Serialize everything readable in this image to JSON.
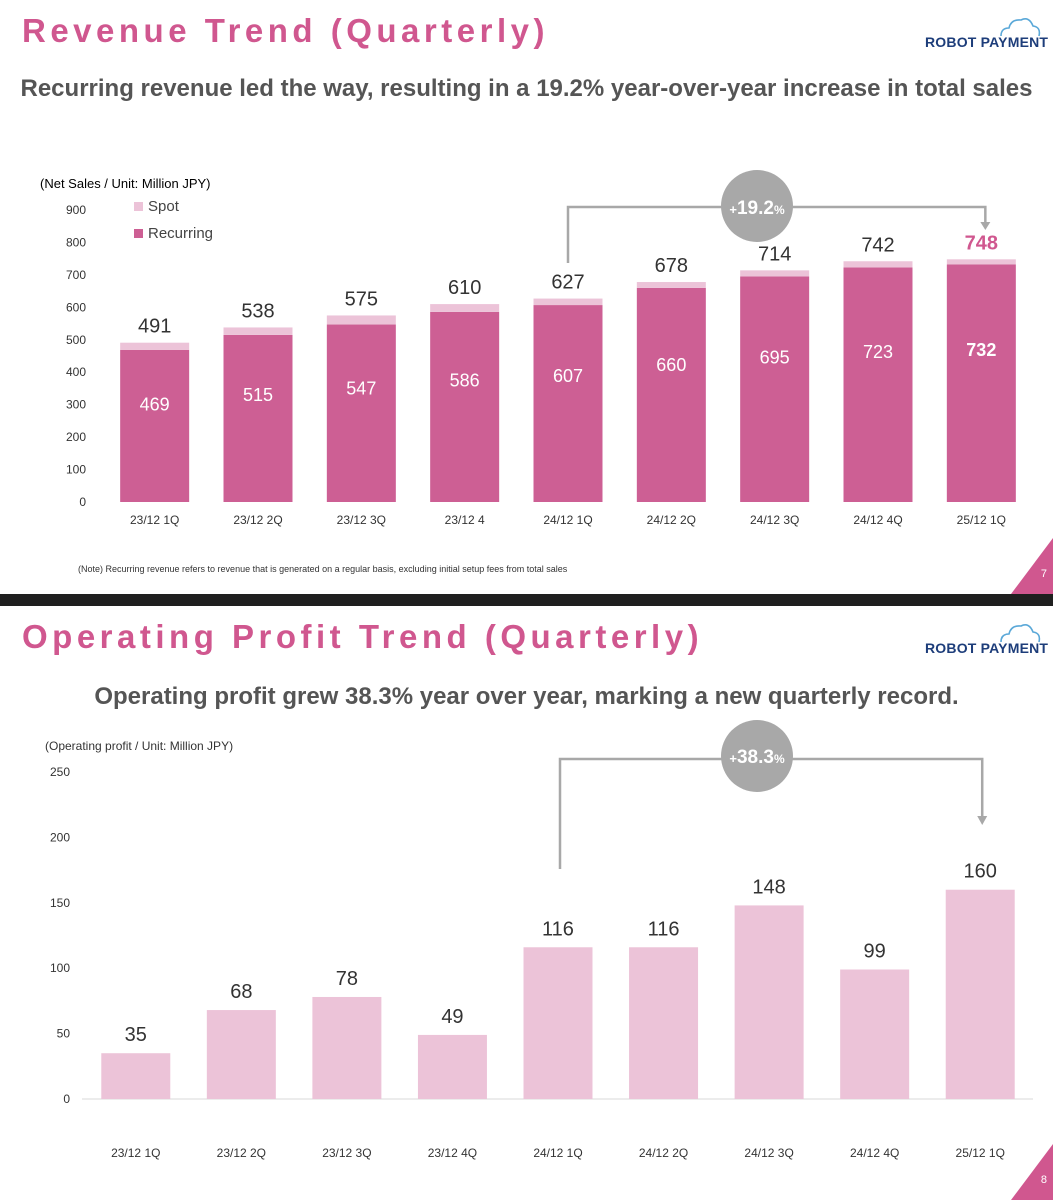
{
  "slide1": {
    "title": "Revenue Trend (Quarterly)",
    "subtitle": "Recurring revenue led the way, resulting in a 19.2% year-over-year increase in total sales",
    "logo_text": "ROBOT PAYMENT",
    "note": "(Note) Recurring revenue refers to revenue that is generated on a regular basis, excluding initial setup fees from total sales",
    "page_number": "7"
  },
  "slide2": {
    "title": "Operating Profit Trend (Quarterly)",
    "subtitle": "Operating profit grew 38.3% year over year, marking a new quarterly record.",
    "logo_text": "ROBOT PAYMENT",
    "page_number": "8"
  },
  "colors": {
    "accent": "#d0578f",
    "recurring": "#cd5f94",
    "spot": "#ecc3d8",
    "profit_bar": "#ecc3d8",
    "growth_badge": "#a8a8a8",
    "logo_navy": "#1d3d7a",
    "logo_cloud": "#5aa8d8"
  },
  "chart_data": [
    {
      "type": "bar",
      "stacked": true,
      "unit_label": "(Net Sales / Unit: Million JPY)",
      "categories": [
        "23/12 1Q",
        "23/12 2Q",
        "23/12 3Q",
        "23/12 4",
        "24/12 1Q",
        "24/12 2Q",
        "24/12 3Q",
        "24/12 4Q",
        "25/12 1Q"
      ],
      "series": [
        {
          "name": "Recurring",
          "values": [
            469,
            515,
            547,
            586,
            607,
            660,
            695,
            723,
            732
          ]
        },
        {
          "name": "Spot",
          "values": [
            22,
            23,
            28,
            24,
            20,
            18,
            19,
            19,
            16
          ]
        }
      ],
      "totals": [
        491,
        538,
        575,
        610,
        627,
        678,
        714,
        742,
        748
      ],
      "yticks": [
        0,
        100,
        200,
        300,
        400,
        500,
        600,
        700,
        800,
        900
      ],
      "ylim": [
        0,
        900
      ],
      "legend": [
        "Spot",
        "Recurring"
      ],
      "legend_position": "top-left",
      "growth": {
        "prefix": "+",
        "value": "19.2",
        "suffix": "%",
        "from": "24/12 1Q",
        "to": "25/12 1Q"
      }
    },
    {
      "type": "bar",
      "unit_label": "(Operating profit / Unit: Million JPY)",
      "categories": [
        "23/12 1Q",
        "23/12 2Q",
        "23/12 3Q",
        "23/12 4Q",
        "24/12 1Q",
        "24/12 2Q",
        "24/12 3Q",
        "24/12 4Q",
        "25/12 1Q"
      ],
      "values": [
        35,
        68,
        78,
        49,
        116,
        116,
        148,
        99,
        160
      ],
      "yticks": [
        0,
        50,
        100,
        150,
        200,
        250
      ],
      "ylim": [
        0,
        250
      ],
      "growth": {
        "prefix": "+",
        "value": "38.3",
        "suffix": "%",
        "from": "24/12 1Q",
        "to": "25/12 1Q"
      }
    }
  ]
}
